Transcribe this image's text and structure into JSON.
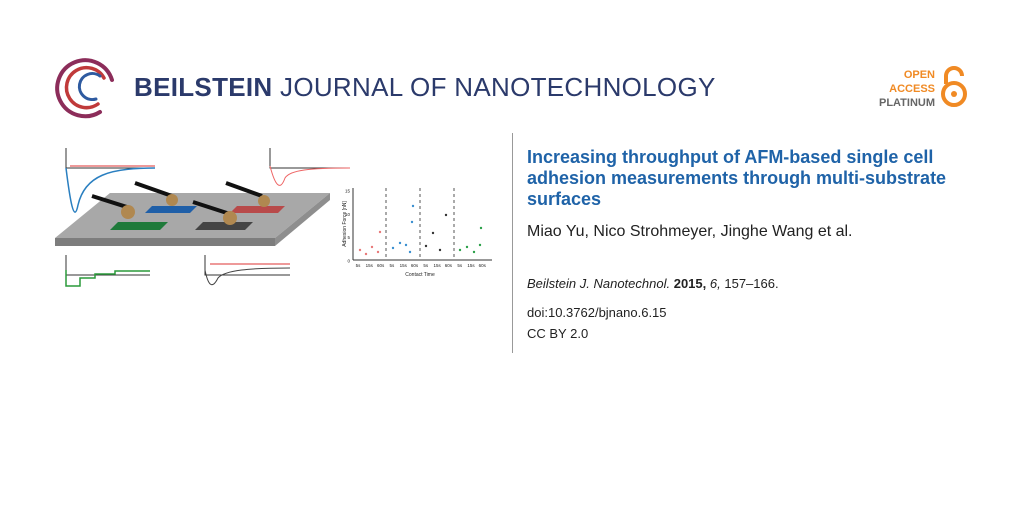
{
  "header": {
    "journal_bold": "BEILSTEIN",
    "journal_rest": "JOURNAL OF NANOTECHNOLOGY",
    "badge": [
      "OPEN",
      "ACCESS",
      "PLATINUM"
    ]
  },
  "graphic": {
    "y_label": "Adhesion Force [nN]",
    "x_label": "Contact Time",
    "yticks": [
      "0",
      "5",
      "10",
      "15"
    ],
    "xticks": [
      "5s",
      "15s",
      "60s",
      "5s",
      "15s",
      "60s",
      "5s",
      "15s",
      "60s",
      "5s",
      "15s",
      "60s"
    ]
  },
  "article": {
    "title": "Increasing throughput of AFM-based single cell adhesion measurements through multi-substrate surfaces",
    "authors": "Miao Yu, Nico Strohmeyer, Jinghe Wang et al.",
    "citation": {
      "journal": "Beilstein J. Nanotechnol.",
      "year": "2015,",
      "volume": "6,",
      "pages": "157–166."
    },
    "doi": "doi:10.3762/bjnano.6.15",
    "license": "CC BY 2.0"
  }
}
